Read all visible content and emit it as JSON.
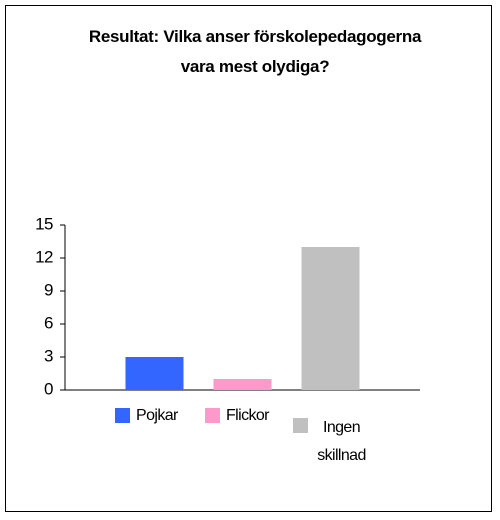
{
  "chart_data": {
    "type": "bar",
    "title": "Resultat: Vilka anser förskolepedagogerna vara mest olydiga?",
    "categories": [
      null
    ],
    "series": [
      {
        "name": "Pojkar",
        "color": "#3366ff",
        "values": [
          3
        ]
      },
      {
        "name": "Flickor",
        "color": "#ff99cc",
        "values": [
          1
        ]
      },
      {
        "name": "Ingen skillnad",
        "color": "#c0c0c0",
        "values": [
          13
        ]
      }
    ],
    "ylim": [
      0,
      15
    ],
    "yticks": [
      0,
      3,
      6,
      9,
      12,
      15
    ]
  }
}
